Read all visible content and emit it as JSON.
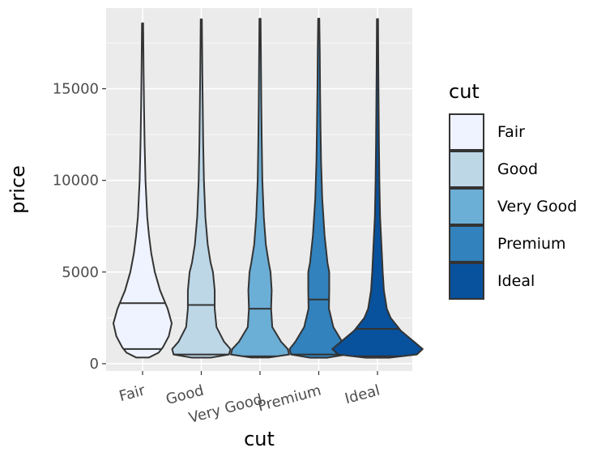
{
  "chart_data": {
    "type": "violin",
    "title": "",
    "xlabel": "cut",
    "ylabel": "price",
    "ylim": [
      -400,
      19400
    ],
    "yticks": [
      0,
      5000,
      10000,
      15000
    ],
    "ytick_labels": [
      "0",
      "5000",
      "10000",
      "15000"
    ],
    "categories": [
      "Fair",
      "Good",
      "Very Good",
      "Premium",
      "Ideal"
    ],
    "grid": true,
    "legend": {
      "title": "cut",
      "placement": "right",
      "entries": [
        "Fair",
        "Good",
        "Very Good",
        "Premium",
        "Ideal"
      ]
    },
    "series": [
      {
        "name": "Fair",
        "color": "#eff3ff",
        "min": 337,
        "max": 18574,
        "quantiles": [
          800,
          3300
        ],
        "profile": [
          [
            337,
            0.22
          ],
          [
            600,
            0.55
          ],
          [
            900,
            0.7
          ],
          [
            1500,
            0.9
          ],
          [
            2200,
            1.0
          ],
          [
            3000,
            0.86
          ],
          [
            4000,
            0.6
          ],
          [
            5000,
            0.42
          ],
          [
            6000,
            0.3
          ],
          [
            7000,
            0.22
          ],
          [
            8000,
            0.16
          ],
          [
            10000,
            0.1
          ],
          [
            12000,
            0.07
          ],
          [
            14000,
            0.05
          ],
          [
            16000,
            0.035
          ],
          [
            18574,
            0.02
          ]
        ]
      },
      {
        "name": "Good",
        "color": "#bdd7e7",
        "min": 327,
        "max": 18788,
        "quantiles": [
          500,
          3200
        ],
        "profile": [
          [
            327,
            0.32
          ],
          [
            500,
            0.95
          ],
          [
            800,
            1.0
          ],
          [
            1200,
            0.78
          ],
          [
            2000,
            0.52
          ],
          [
            3000,
            0.46
          ],
          [
            4000,
            0.46
          ],
          [
            5000,
            0.4
          ],
          [
            5500,
            0.32
          ],
          [
            6500,
            0.22
          ],
          [
            8000,
            0.14
          ],
          [
            10000,
            0.09
          ],
          [
            12000,
            0.065
          ],
          [
            14000,
            0.05
          ],
          [
            16000,
            0.035
          ],
          [
            18788,
            0.02
          ]
        ]
      },
      {
        "name": "Very Good",
        "color": "#6baed6",
        "min": 336,
        "max": 18818,
        "quantiles": [
          400,
          3000
        ],
        "profile": [
          [
            336,
            0.3
          ],
          [
            500,
            1.0
          ],
          [
            800,
            0.95
          ],
          [
            1200,
            0.72
          ],
          [
            2000,
            0.42
          ],
          [
            3000,
            0.38
          ],
          [
            4000,
            0.4
          ],
          [
            5000,
            0.36
          ],
          [
            5500,
            0.3
          ],
          [
            6500,
            0.2
          ],
          [
            8000,
            0.13
          ],
          [
            10000,
            0.08
          ],
          [
            12000,
            0.06
          ],
          [
            14000,
            0.045
          ],
          [
            16000,
            0.035
          ],
          [
            18818,
            0.02
          ]
        ]
      },
      {
        "name": "Premium",
        "color": "#3182bd",
        "min": 326,
        "max": 18823,
        "quantiles": [
          500,
          3500
        ],
        "profile": [
          [
            326,
            0.3
          ],
          [
            500,
            0.95
          ],
          [
            800,
            1.0
          ],
          [
            1200,
            0.8
          ],
          [
            2000,
            0.5
          ],
          [
            3000,
            0.35
          ],
          [
            4000,
            0.36
          ],
          [
            5000,
            0.36
          ],
          [
            5500,
            0.3
          ],
          [
            7000,
            0.2
          ],
          [
            9000,
            0.12
          ],
          [
            11000,
            0.08
          ],
          [
            13000,
            0.06
          ],
          [
            15000,
            0.045
          ],
          [
            17000,
            0.035
          ],
          [
            18823,
            0.02
          ]
        ]
      },
      {
        "name": "Ideal",
        "color": "#08519c",
        "min": 326,
        "max": 18806,
        "quantiles": [
          400,
          1900
        ],
        "profile": [
          [
            326,
            0.4
          ],
          [
            500,
            1.35
          ],
          [
            800,
            1.55
          ],
          [
            1200,
            1.25
          ],
          [
            1800,
            0.8
          ],
          [
            2500,
            0.45
          ],
          [
            3000,
            0.32
          ],
          [
            4000,
            0.22
          ],
          [
            5000,
            0.18
          ],
          [
            6000,
            0.15
          ],
          [
            7000,
            0.12
          ],
          [
            8000,
            0.09
          ],
          [
            10000,
            0.065
          ],
          [
            12000,
            0.05
          ],
          [
            14000,
            0.04
          ],
          [
            16000,
            0.03
          ],
          [
            18806,
            0.02
          ]
        ]
      }
    ]
  }
}
